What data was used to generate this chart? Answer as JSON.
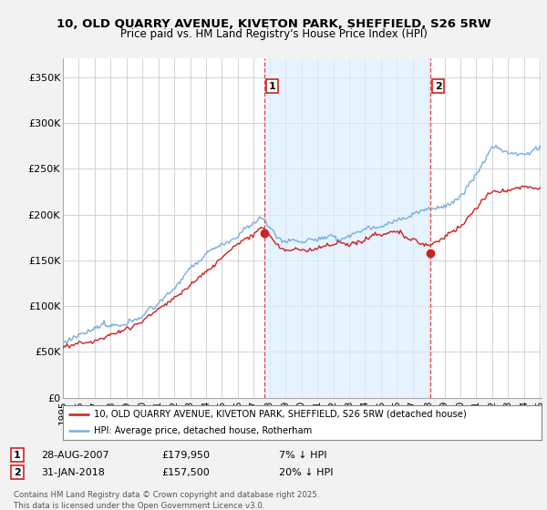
{
  "title_line1": "10, OLD QUARRY AVENUE, KIVETON PARK, SHEFFIELD, S26 5RW",
  "title_line2": "Price paid vs. HM Land Registry's House Price Index (HPI)",
  "background_color": "#f2f2f2",
  "plot_bg_color": "#ffffff",
  "ylim": [
    0,
    370000
  ],
  "yticks": [
    0,
    50000,
    100000,
    150000,
    200000,
    250000,
    300000,
    350000
  ],
  "ytick_labels": [
    "£0",
    "£50K",
    "£100K",
    "£150K",
    "£200K",
    "£250K",
    "£300K",
    "£350K"
  ],
  "year_start": 1995,
  "year_end": 2025,
  "marker1_date": 2007.65,
  "marker1_price": 179950,
  "marker2_date": 2018.08,
  "marker2_price": 157500,
  "legend_entry1": "10, OLD QUARRY AVENUE, KIVETON PARK, SHEFFIELD, S26 5RW (detached house)",
  "legend_entry2": "HPI: Average price, detached house, Rotherham",
  "footer": "Contains HM Land Registry data © Crown copyright and database right 2025.\nThis data is licensed under the Open Government Licence v3.0.",
  "red_color": "#cc2222",
  "blue_color": "#7aaddb",
  "shade_color": "#ddeeff",
  "grid_color": "#cccccc",
  "dashed_color": "#dd4444"
}
